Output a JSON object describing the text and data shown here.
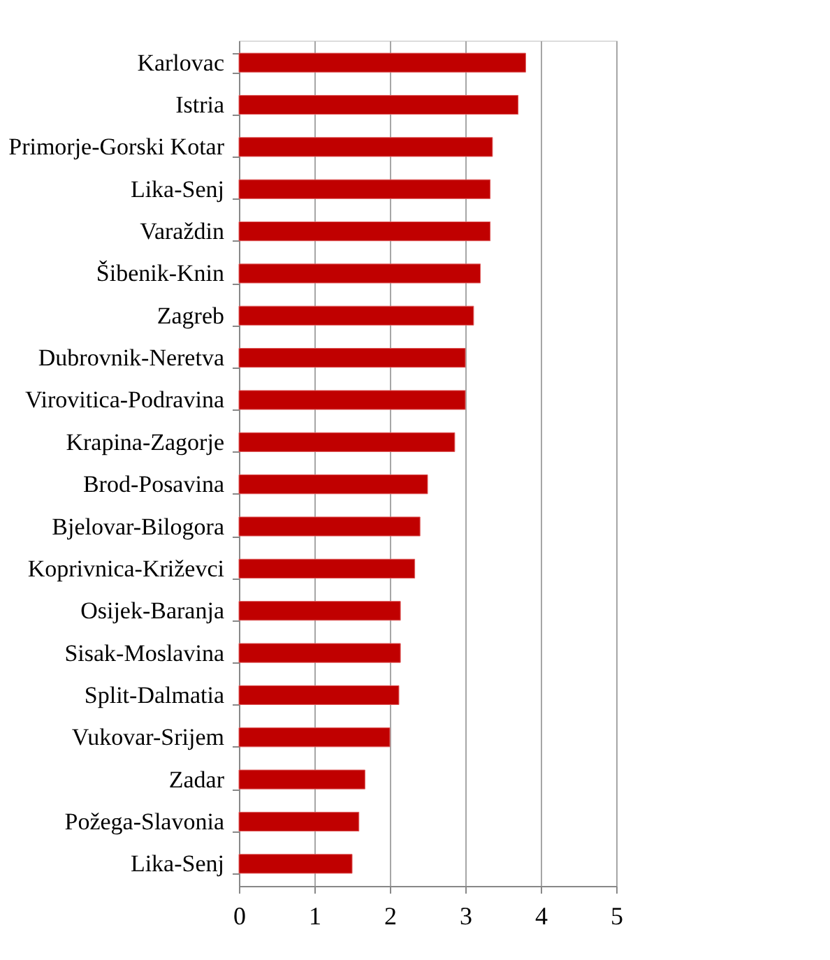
{
  "chart_data": {
    "type": "bar",
    "orientation": "horizontal",
    "categories": [
      "Karlovac",
      "Istria",
      "Primorje-Gorski Kotar",
      "Lika-Senj",
      "Varaždin",
      "Šibenik-Knin",
      "Zagreb",
      "Dubrovnik-Neretva",
      "Virovitica-Podravina",
      "Krapina-Zagorje",
      "Brod-Posavina",
      "Bjelovar-Bilogora",
      "Koprivnica-Križevci",
      "Osijek-Baranja",
      "Sisak-Moslavina",
      "Split-Dalmatia",
      "Vukovar-Srijem",
      "Zadar",
      "Požega-Slavonia",
      "Lika-Senj"
    ],
    "values": [
      3.8,
      3.7,
      3.36,
      3.33,
      3.33,
      3.2,
      3.11,
      3.0,
      3.0,
      2.86,
      2.5,
      2.4,
      2.33,
      2.14,
      2.14,
      2.12,
      2.0,
      1.67,
      1.59,
      1.5
    ],
    "color": "#c00000",
    "xlim": [
      0,
      5
    ],
    "xticks": [
      0,
      1,
      2,
      3,
      4,
      5
    ],
    "grid": "x"
  }
}
